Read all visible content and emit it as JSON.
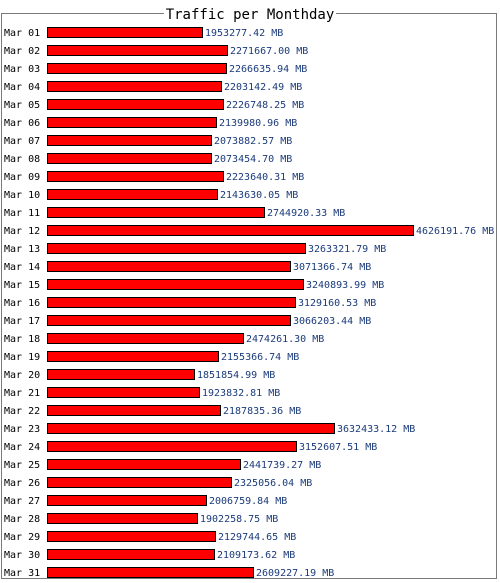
{
  "chart_data": {
    "type": "bar",
    "orientation": "horizontal",
    "title": "Traffic per Monthday",
    "unit": "MB",
    "categories": [
      "Mar 01",
      "Mar 02",
      "Mar 03",
      "Mar 04",
      "Mar 05",
      "Mar 06",
      "Mar 07",
      "Mar 08",
      "Mar 09",
      "Mar 10",
      "Mar 11",
      "Mar 12",
      "Mar 13",
      "Mar 14",
      "Mar 15",
      "Mar 16",
      "Mar 17",
      "Mar 18",
      "Mar 19",
      "Mar 20",
      "Mar 21",
      "Mar 22",
      "Mar 23",
      "Mar 24",
      "Mar 25",
      "Mar 26",
      "Mar 27",
      "Mar 28",
      "Mar 29",
      "Mar 30",
      "Mar 31"
    ],
    "values": [
      1953277.42,
      2271667.0,
      2266635.94,
      2203142.49,
      2226748.25,
      2139980.96,
      2073882.57,
      2073454.7,
      2223640.31,
      2143630.05,
      2744920.33,
      4626191.76,
      3263321.79,
      3071366.74,
      3240893.99,
      3129160.53,
      3066203.44,
      2474261.3,
      2155366.74,
      1851854.99,
      1923832.81,
      2187835.36,
      3632433.12,
      3152607.51,
      2441739.27,
      2325056.04,
      2006759.84,
      1902258.75,
      2129744.65,
      2109173.62,
      2609227.19
    ],
    "value_labels": [
      "1953277.42 MB",
      "2271667.00 MB",
      "2266635.94 MB",
      "2203142.49 MB",
      "2226748.25 MB",
      "2139980.96 MB",
      "2073882.57 MB",
      "2073454.70 MB",
      "2223640.31 MB",
      "2143630.05 MB",
      "2744920.33 MB",
      "4626191.76 MB",
      "3263321.79 MB",
      "3071366.74 MB",
      "3240893.99 MB",
      "3129160.53 MB",
      "3066203.44 MB",
      "2474261.30 MB",
      "2155366.74 MB",
      "1851854.99 MB",
      "1923832.81 MB",
      "2187835.36 MB",
      "3632433.12 MB",
      "3152607.51 MB",
      "2441739.27 MB",
      "2325056.04 MB",
      "2006759.84 MB",
      "1902258.75 MB",
      "2129744.65 MB",
      "2109173.62 MB",
      "2609227.19 MB"
    ],
    "xlim": [
      0,
      4626191.76
    ],
    "grid": false,
    "legend": "none"
  },
  "colors": {
    "bar_fill": "#ff0000",
    "bar_stroke": "#000000",
    "category_text": "#000000",
    "value_text": "#1a3a7a",
    "frame": "#7a7a7a",
    "title_text": "#000000"
  }
}
